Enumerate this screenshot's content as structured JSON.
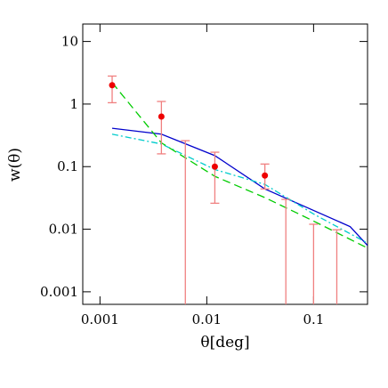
{
  "chart_data": {
    "type": "line",
    "xlabel": "θ[deg]",
    "ylabel": "w(θ)",
    "xlog": true,
    "ylog": true,
    "xlim": [
      0.00069,
      0.32
    ],
    "ylim": [
      0.00063,
      19
    ],
    "xticks": [
      0.001,
      0.01,
      0.1
    ],
    "yticks": [
      0.001,
      0.01,
      0.1,
      1,
      10
    ],
    "series": [
      {
        "color": "#0000cc",
        "dash": "none",
        "x": [
          0.0013,
          0.00376,
          0.0119,
          0.035,
          0.22,
          0.32
        ],
        "values": [
          0.41,
          0.33,
          0.15,
          0.044,
          0.011,
          0.0055
        ]
      },
      {
        "color": "#00cccc",
        "dash": "7 3 2 3",
        "x": [
          0.0013,
          0.00376,
          0.0119,
          0.035,
          0.1,
          0.32
        ],
        "values": [
          0.33,
          0.23,
          0.09,
          0.052,
          0.0175,
          0.006
        ]
      },
      {
        "color": "#00cc00",
        "dash": "9 5",
        "x": [
          0.0013,
          0.00376,
          0.0119,
          0.035,
          0.1,
          0.32
        ],
        "values": [
          2.2,
          0.24,
          0.07,
          0.032,
          0.0135,
          0.005
        ]
      }
    ],
    "points": {
      "color": "#ee0000",
      "errcolor": "#f08080",
      "x": [
        0.0013,
        0.00376,
        0.0063,
        0.0119,
        0.035,
        0.055,
        0.1,
        0.165
      ],
      "values": [
        2.0,
        0.63,
        null,
        0.1,
        0.072,
        null,
        null,
        null
      ],
      "err_high": [
        2.8,
        1.1,
        0.26,
        0.17,
        0.11,
        0.03,
        0.012,
        0.0098
      ],
      "err_low": [
        1.05,
        0.16,
        null,
        0.026,
        0.044,
        null,
        null,
        null
      ]
    }
  }
}
